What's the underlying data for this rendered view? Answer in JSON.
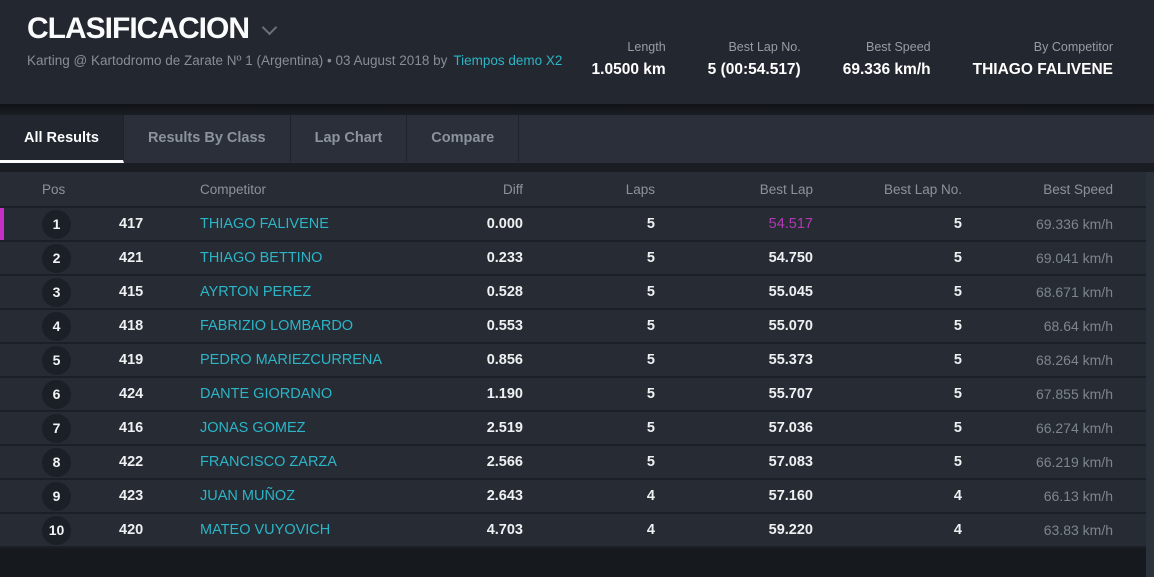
{
  "header": {
    "title": "CLASIFICACION",
    "subtitle": "Karting @ Kartodromo de Zarate Nº 1 (Argentina) • 03 August 2018 by",
    "subtitle_link": "Tiempos demo X2",
    "stats": [
      {
        "label": "Length",
        "value": "1.0500 km"
      },
      {
        "label": "Best Lap No.",
        "value": "5 (00:54.517)"
      },
      {
        "label": "Best Speed",
        "value": "69.336 km/h"
      },
      {
        "label": "By Competitor",
        "value": "THIAGO FALIVENE"
      }
    ]
  },
  "tabs": [
    {
      "label": "All Results",
      "active": true
    },
    {
      "label": "Results By Class",
      "active": false
    },
    {
      "label": "Lap Chart",
      "active": false
    },
    {
      "label": "Compare",
      "active": false
    }
  ],
  "table": {
    "columns": {
      "pos": "Pos",
      "no": "",
      "competitor": "Competitor",
      "diff": "Diff",
      "laps": "Laps",
      "best_lap": "Best Lap",
      "best_lap_no": "Best Lap No.",
      "best_speed": "Best Speed"
    },
    "rows": [
      {
        "pos": "1",
        "no": "417",
        "competitor": "THIAGO FALIVENE",
        "diff": "0.000",
        "laps": "5",
        "best_lap": "54.517",
        "best_lap_no": "5",
        "best_speed": "69.336 km/h",
        "highlight": true
      },
      {
        "pos": "2",
        "no": "421",
        "competitor": "THIAGO BETTINO",
        "diff": "0.233",
        "laps": "5",
        "best_lap": "54.750",
        "best_lap_no": "5",
        "best_speed": "69.041 km/h",
        "highlight": false
      },
      {
        "pos": "3",
        "no": "415",
        "competitor": "AYRTON PEREZ",
        "diff": "0.528",
        "laps": "5",
        "best_lap": "55.045",
        "best_lap_no": "5",
        "best_speed": "68.671 km/h",
        "highlight": false
      },
      {
        "pos": "4",
        "no": "418",
        "competitor": "FABRIZIO LOMBARDO",
        "diff": "0.553",
        "laps": "5",
        "best_lap": "55.070",
        "best_lap_no": "5",
        "best_speed": "68.64 km/h",
        "highlight": false
      },
      {
        "pos": "5",
        "no": "419",
        "competitor": "PEDRO MARIEZCURRENA",
        "diff": "0.856",
        "laps": "5",
        "best_lap": "55.373",
        "best_lap_no": "5",
        "best_speed": "68.264 km/h",
        "highlight": false
      },
      {
        "pos": "6",
        "no": "424",
        "competitor": "DANTE GIORDANO",
        "diff": "1.190",
        "laps": "5",
        "best_lap": "55.707",
        "best_lap_no": "5",
        "best_speed": "67.855 km/h",
        "highlight": false
      },
      {
        "pos": "7",
        "no": "416",
        "competitor": "JONAS GOMEZ",
        "diff": "2.519",
        "laps": "5",
        "best_lap": "57.036",
        "best_lap_no": "5",
        "best_speed": "66.274 km/h",
        "highlight": false
      },
      {
        "pos": "8",
        "no": "422",
        "competitor": "FRANCISCO ZARZA",
        "diff": "2.566",
        "laps": "5",
        "best_lap": "57.083",
        "best_lap_no": "5",
        "best_speed": "66.219 km/h",
        "highlight": false
      },
      {
        "pos": "9",
        "no": "423",
        "competitor": "JUAN MUÑOZ",
        "diff": "2.643",
        "laps": "4",
        "best_lap": "57.160",
        "best_lap_no": "4",
        "best_speed": "66.13 km/h",
        "highlight": false
      },
      {
        "pos": "10",
        "no": "420",
        "competitor": "MATEO VUYOVICH",
        "diff": "4.703",
        "laps": "4",
        "best_lap": "59.220",
        "best_lap_no": "4",
        "best_speed": "63.83 km/h",
        "highlight": false
      }
    ]
  },
  "colors": {
    "accent_cyan": "#2bb5c6",
    "accent_magenta": "#c62fc6",
    "best_lap_highlight_text": "#b13ab3",
    "header_background": "#23272f",
    "row_background": "#262b34",
    "muted_text": "#8d939d"
  }
}
